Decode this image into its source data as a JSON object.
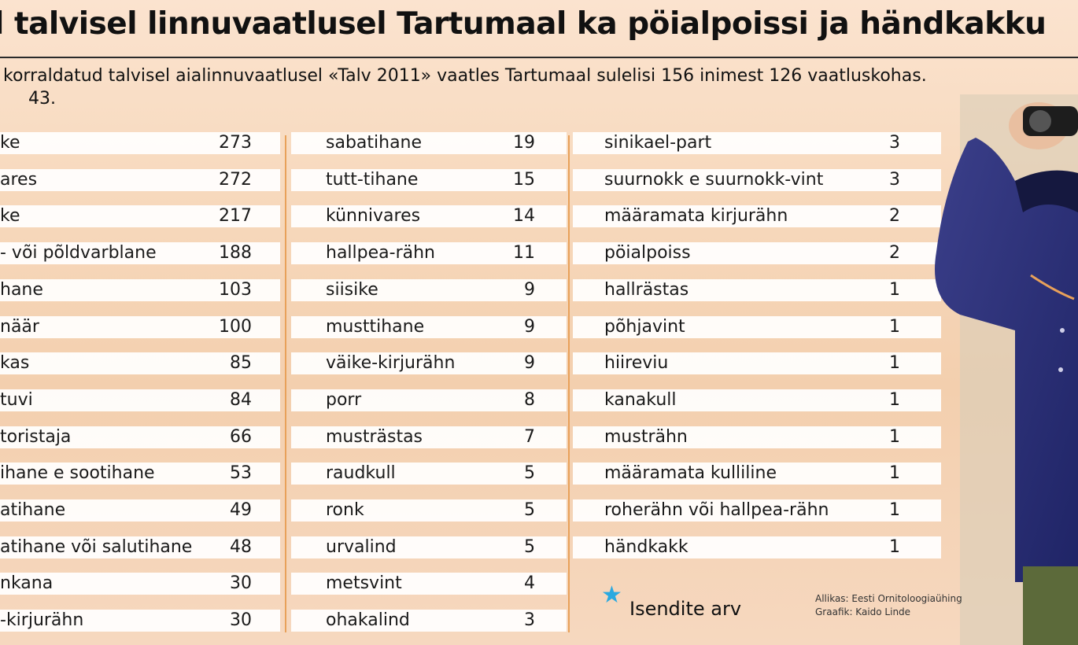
{
  "title": "l talvisel linnuvaatlusel Tartumaal ka pöialpoissi ja händkakku",
  "subtitle_line1": "korraldatud talvisel aialinnuvaatlusel «Talv 2011» vaatles Tartumaal sulelisi 156 inimest 126 vaatluskohas.",
  "subtitle_line2": "43.",
  "legend_label": "Isendite arv",
  "source_line1": "Allikas: Eesti Ornitoloogiaühing",
  "source_line2": "Graafik: Kaido Linde",
  "colors": {
    "accent_line": "#e8a15a",
    "star": "#2aa9e0",
    "row_bg": "#ffffff"
  },
  "chart_data": {
    "type": "table",
    "title": "l talvisel linnuvaatlusel Tartumaal ka pöialpoissi ja händkakku",
    "columns": [
      [
        {
          "name": "ke",
          "value": 273
        },
        {
          "name": "ares",
          "value": 272
        },
        {
          "name": "ke",
          "value": 217
        },
        {
          "name": "- või põldvarblane",
          "value": 188
        },
        {
          "name": "hane",
          "value": 103
        },
        {
          "name": "näär",
          "value": 100
        },
        {
          "name": "kas",
          "value": 85
        },
        {
          "name": "tuvi",
          "value": 84
        },
        {
          "name": "toristaja",
          "value": 66
        },
        {
          "name": "ihane e sootihane",
          "value": 53
        },
        {
          "name": "atihane",
          "value": 49
        },
        {
          "name": "atihane või salutihane",
          "value": 48
        },
        {
          "name": "nkana",
          "value": 30
        },
        {
          "name": "-kirjurähn",
          "value": 30
        }
      ],
      [
        {
          "name": "sabatihane",
          "value": 19
        },
        {
          "name": "tutt-tihane",
          "value": 15
        },
        {
          "name": "künnivares",
          "value": 14
        },
        {
          "name": "hallpea-rähn",
          "value": 11
        },
        {
          "name": "siisike",
          "value": 9
        },
        {
          "name": "musttihane",
          "value": 9
        },
        {
          "name": "väike-kirjurähn",
          "value": 9
        },
        {
          "name": "porr",
          "value": 8
        },
        {
          "name": "musträstas",
          "value": 7
        },
        {
          "name": "raudkull",
          "value": 5
        },
        {
          "name": "ronk",
          "value": 5
        },
        {
          "name": "urvalind",
          "value": 5
        },
        {
          "name": "metsvint",
          "value": 4
        },
        {
          "name": "ohakalind",
          "value": 3
        }
      ],
      [
        {
          "name": "sinikael-part",
          "value": 3
        },
        {
          "name": "suurnokk e suurnokk-vint",
          "value": 3
        },
        {
          "name": "määramata kirjurähn",
          "value": 2
        },
        {
          "name": "pöialpoiss",
          "value": 2
        },
        {
          "name": "hallrästas",
          "value": 1
        },
        {
          "name": "põhjavint",
          "value": 1
        },
        {
          "name": "hiireviu",
          "value": 1
        },
        {
          "name": "kanakull",
          "value": 1
        },
        {
          "name": "musträhn",
          "value": 1
        },
        {
          "name": "määramata kulliline",
          "value": 1
        },
        {
          "name": "roherähn või hallpea-rähn",
          "value": 1
        },
        {
          "name": "händkakk",
          "value": 1
        }
      ]
    ]
  }
}
